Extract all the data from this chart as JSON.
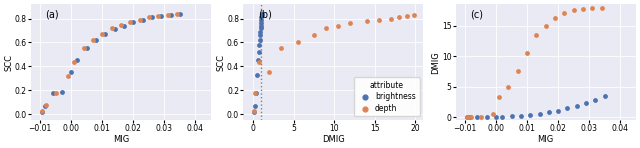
{
  "panel_a": {
    "title": "(a)",
    "xlabel": "MIG",
    "ylabel": "SCC",
    "xlim": [
      -0.013,
      0.045
    ],
    "ylim": [
      -0.05,
      0.92
    ],
    "xticks": [
      -0.01,
      0.0,
      0.01,
      0.02,
      0.03,
      0.04
    ],
    "yticks": [
      0.0,
      0.2,
      0.4,
      0.6,
      0.8
    ],
    "blue_x": [
      -0.0095,
      -0.0085,
      -0.006,
      -0.003,
      0.0,
      0.002,
      0.005,
      0.008,
      0.011,
      0.014,
      0.017,
      0.02,
      0.023,
      0.026,
      0.029,
      0.032,
      0.035
    ],
    "blue_y": [
      0.02,
      0.07,
      0.18,
      0.19,
      0.35,
      0.45,
      0.55,
      0.62,
      0.67,
      0.71,
      0.74,
      0.77,
      0.79,
      0.81,
      0.82,
      0.83,
      0.84
    ],
    "orange_x": [
      -0.0095,
      -0.0082,
      -0.005,
      -0.001,
      0.001,
      0.004,
      0.007,
      0.01,
      0.013,
      0.016,
      0.019,
      0.022,
      0.025,
      0.028,
      0.031,
      0.034
    ],
    "orange_y": [
      0.03,
      0.08,
      0.18,
      0.32,
      0.44,
      0.55,
      0.62,
      0.67,
      0.72,
      0.75,
      0.77,
      0.79,
      0.81,
      0.82,
      0.83,
      0.84
    ]
  },
  "panel_b": {
    "title": "(b)",
    "xlabel": "DMIG",
    "ylabel": "SCC",
    "xlim": [
      -1.2,
      21
    ],
    "ylim": [
      -0.05,
      0.92
    ],
    "xticks": [
      0,
      5,
      10,
      15,
      20
    ],
    "yticks": [
      0.0,
      0.2,
      0.4,
      0.6,
      0.8
    ],
    "vline_x": 1.0,
    "blue_x": [
      0.15,
      0.25,
      0.4,
      0.55,
      0.65,
      0.72,
      0.78,
      0.83,
      0.87,
      0.9,
      0.93,
      0.96,
      0.98,
      1.0,
      1.03,
      1.07,
      1.12
    ],
    "blue_y": [
      0.02,
      0.07,
      0.18,
      0.33,
      0.45,
      0.52,
      0.58,
      0.62,
      0.66,
      0.69,
      0.72,
      0.74,
      0.76,
      0.79,
      0.81,
      0.83,
      0.84
    ],
    "orange_x": [
      0.15,
      0.3,
      0.75,
      2.0,
      3.5,
      5.5,
      7.5,
      9.0,
      10.5,
      12.0,
      14.0,
      15.5,
      17.0,
      18.0,
      19.0,
      19.8
    ],
    "orange_y": [
      0.03,
      0.18,
      0.44,
      0.35,
      0.55,
      0.6,
      0.66,
      0.72,
      0.74,
      0.76,
      0.78,
      0.79,
      0.8,
      0.81,
      0.82,
      0.83
    ]
  },
  "panel_c": {
    "title": "(c)",
    "xlabel": "MIG",
    "ylabel": "DMIG",
    "xlim": [
      -0.013,
      0.045
    ],
    "ylim": [
      -0.5,
      18.5
    ],
    "xticks": [
      -0.01,
      0.0,
      0.01,
      0.02,
      0.03,
      0.04
    ],
    "yticks": [
      0,
      5,
      10,
      15
    ],
    "blue_x": [
      -0.0095,
      -0.0085,
      -0.006,
      -0.003,
      0.0,
      0.002,
      0.005,
      0.008,
      0.011,
      0.014,
      0.017,
      0.02,
      0.023,
      0.026,
      0.029,
      0.032,
      0.035
    ],
    "blue_y": [
      0.0,
      0.0,
      0.05,
      0.05,
      0.1,
      0.1,
      0.15,
      0.2,
      0.3,
      0.5,
      0.8,
      1.1,
      1.5,
      1.9,
      2.3,
      2.8,
      3.4
    ],
    "orange_x": [
      -0.0095,
      -0.0082,
      -0.005,
      -0.001,
      0.001,
      0.004,
      0.007,
      0.01,
      0.013,
      0.016,
      0.019,
      0.022,
      0.025,
      0.028,
      0.031,
      0.034
    ],
    "orange_y": [
      0.0,
      0.0,
      0.0,
      0.5,
      3.3,
      5.0,
      7.5,
      10.5,
      13.5,
      15.0,
      16.2,
      17.0,
      17.5,
      17.7,
      17.9,
      17.9
    ]
  },
  "blue_color": "#4c72b0",
  "orange_color": "#dd8452",
  "bg_color": "#eaeaf4",
  "marker_size": 12,
  "legend_title": "attribute",
  "legend_brightness": "brightness",
  "legend_depth": "depth"
}
